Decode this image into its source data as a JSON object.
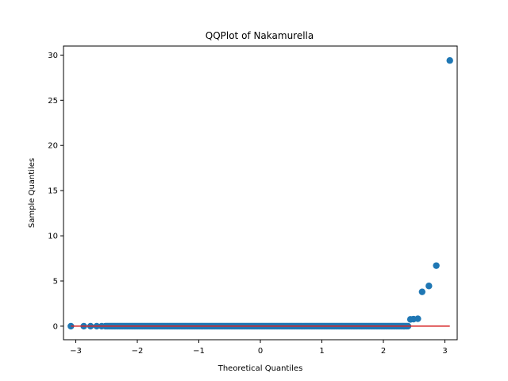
{
  "chart_data": {
    "type": "scatter",
    "title": "QQPlot of Nakamurella",
    "xlabel": "Theoretical Quantiles",
    "ylabel": "Sample Quantiles",
    "xlim": [
      -3.2,
      3.2
    ],
    "ylim": [
      -1.5,
      31.0
    ],
    "xticks": [
      -3,
      -2,
      -1,
      0,
      1,
      2,
      3
    ],
    "xtick_labels": [
      "−3",
      "−2",
      "−1",
      "0",
      "1",
      "2",
      "3"
    ],
    "yticks": [
      0,
      5,
      10,
      15,
      20,
      25,
      30
    ],
    "ytick_labels": [
      "0",
      "5",
      "10",
      "15",
      "20",
      "25",
      "30"
    ],
    "grid": false,
    "point_color": "#1f77b4",
    "line_color": "#d62728",
    "reference_line": {
      "x": [
        -3.08,
        3.08
      ],
      "y": [
        0.0,
        0.0
      ]
    },
    "points": {
      "sparse_low_x": [
        -3.08,
        -2.87,
        -2.76,
        -2.66,
        -2.58,
        -2.52
      ],
      "sparse_low_y": [
        0.0,
        0.0,
        0.0,
        0.0,
        0.0,
        0.0
      ],
      "dense_x_range": [
        -2.5,
        2.4
      ],
      "dense_y": 0.0,
      "high_x": [
        2.44,
        2.49,
        2.56,
        2.63,
        2.74,
        2.86,
        3.08
      ],
      "high_y": [
        0.75,
        0.78,
        0.82,
        3.8,
        4.45,
        6.7,
        29.4
      ]
    }
  }
}
